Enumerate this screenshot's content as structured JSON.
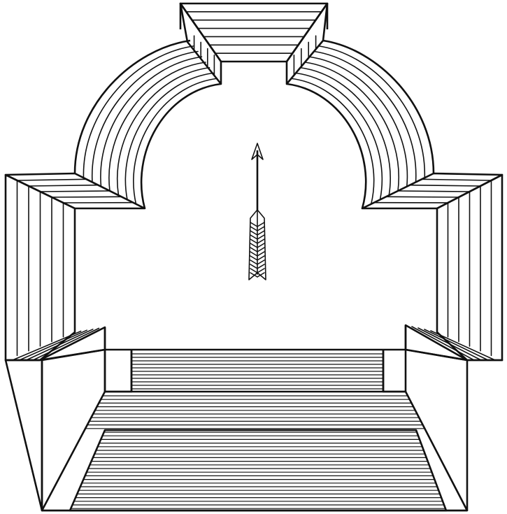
{
  "figure": {
    "subject": "arch",
    "icon": "arrow-icon",
    "colors": {
      "ink": "#111111",
      "paper": "#ffffff"
    }
  }
}
